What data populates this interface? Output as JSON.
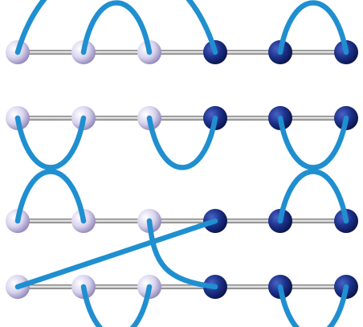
{
  "colors": {
    "background": "#ffffff",
    "rod": "#9a9a9a",
    "link": "#1f8fd0",
    "light_bead": "#e6e2f4",
    "dark_bead": "#1b2f86"
  },
  "diagram": {
    "beads_per_chain": 6,
    "bead_types": [
      "light",
      "light",
      "light",
      "dark",
      "dark",
      "dark"
    ],
    "panels": [
      {
        "name": "panel-top-first-chain",
        "arcs": [
          {
            "from": 1,
            "to": 4,
            "side": "above"
          },
          {
            "from": 2,
            "to": 3,
            "side": "above"
          },
          {
            "from": 5,
            "to": 6,
            "side": "above"
          }
        ]
      },
      {
        "name": "panel-top-second-chain",
        "arcs": [
          {
            "from": 1,
            "to": 2,
            "side": "below"
          },
          {
            "from": 3,
            "to": 4,
            "side": "below"
          },
          {
            "from": 5,
            "to": 6,
            "side": "below"
          }
        ]
      },
      {
        "name": "panel-bottom-pair",
        "arcs": [
          {
            "from": 1,
            "to": 2,
            "side": "above",
            "chain": "upper"
          },
          {
            "from": 5,
            "to": 6,
            "side": "above",
            "chain": "upper"
          },
          {
            "from": 2,
            "to": 3,
            "side": "below",
            "chain": "lower"
          },
          {
            "from": 5,
            "to": 6,
            "side": "below",
            "chain": "lower"
          }
        ],
        "cross_links": [
          {
            "from_chain": "upper",
            "from": 4,
            "to_chain": "lower",
            "to": 1
          },
          {
            "from_chain": "upper",
            "from": 3,
            "to_chain": "lower",
            "to": 4
          }
        ]
      }
    ]
  }
}
